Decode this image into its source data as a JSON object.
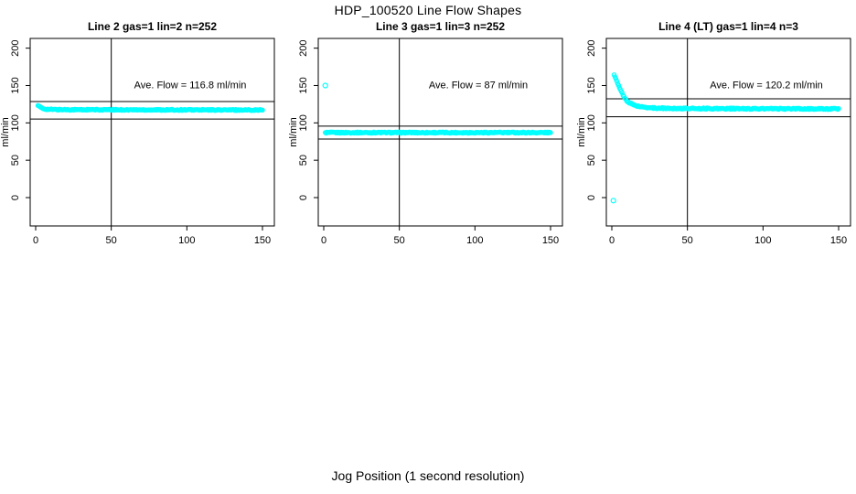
{
  "page": {
    "title": "HDP_100520  Line Flow Shapes",
    "xlabel": "Jog Position (1 second resolution)"
  },
  "chart_data": {
    "type": "scatter",
    "title": "HDP_100520  Line Flow Shapes",
    "xlabel": "Jog Position (1 second resolution)",
    "ylabel": "ml/min",
    "x_ticks": [
      0,
      50,
      100,
      150
    ],
    "y_ticks": [
      0,
      50,
      100,
      150,
      200
    ],
    "xlim": [
      -4,
      158
    ],
    "ylim": [
      -38,
      213
    ],
    "grid": false,
    "legend": "none",
    "point_color": "#00FFFF",
    "line_color": "#000000",
    "panels": [
      {
        "title": "Line 2 gas=1 lin=2 n=252",
        "annotation": "Ave. Flow =  116.8  ml/min",
        "ave_flow": 116.8,
        "n": 252,
        "ref_line_upper": 128.5,
        "ref_line_lower": 105.1,
        "vline_x": 50,
        "noise": 1.4,
        "outliers": [],
        "profile": [
          [
            1.5,
            124
          ],
          [
            2,
            123
          ],
          [
            3,
            121
          ],
          [
            4,
            119.8
          ],
          [
            5,
            119
          ],
          [
            6,
            118.6
          ],
          [
            8,
            118.2
          ],
          [
            10,
            118
          ],
          [
            15,
            117.8
          ],
          [
            20,
            117.7
          ],
          [
            30,
            117.6
          ],
          [
            50,
            117.5
          ],
          [
            80,
            117.4
          ],
          [
            100,
            117.4
          ],
          [
            120,
            117.3
          ],
          [
            150,
            117.3
          ]
        ]
      },
      {
        "title": "Line 3 gas=1 lin=3 n=252",
        "annotation": "Ave. Flow =  87  ml/min",
        "ave_flow": 87,
        "n": 252,
        "ref_line_upper": 95.7,
        "ref_line_lower": 78.3,
        "vline_x": 50,
        "noise": 1.6,
        "outliers": [
          [
            1,
            150
          ]
        ],
        "profile": [
          [
            1,
            86.5
          ],
          [
            2,
            87
          ],
          [
            5,
            87
          ],
          [
            75,
            87
          ],
          [
            150,
            87
          ]
        ]
      },
      {
        "title": "Line 4 (LT) gas=1 lin=4 n=3",
        "annotation": "Ave. Flow =  120.2  ml/min",
        "ave_flow": 120.2,
        "n": 3,
        "ref_line_upper": 132.2,
        "ref_line_lower": 108.2,
        "vline_x": 50,
        "noise": 1.6,
        "outliers": [
          [
            1,
            -4
          ]
        ],
        "profile": [
          [
            1.5,
            165
          ],
          [
            2,
            162
          ],
          [
            3,
            157
          ],
          [
            4,
            152
          ],
          [
            5,
            147
          ],
          [
            6,
            143
          ],
          [
            7,
            139
          ],
          [
            8,
            135
          ],
          [
            9,
            132
          ],
          [
            10,
            129.5
          ],
          [
            12,
            126.5
          ],
          [
            14,
            124.5
          ],
          [
            16,
            123
          ],
          [
            18,
            122
          ],
          [
            20,
            121.3
          ],
          [
            25,
            120.3
          ],
          [
            30,
            119.8
          ],
          [
            40,
            119.4
          ],
          [
            60,
            119.2
          ],
          [
            80,
            119
          ],
          [
            100,
            118.9
          ],
          [
            120,
            118.8
          ],
          [
            150,
            118.7
          ]
        ]
      }
    ]
  }
}
